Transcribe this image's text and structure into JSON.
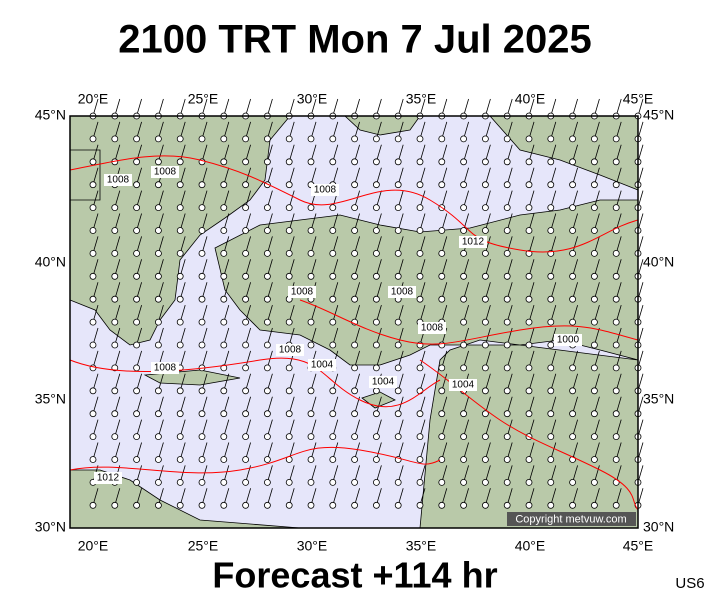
{
  "title": "2100 TRT Mon 7 Jul 2025",
  "footer": "Forecast +114 hr",
  "code": "US6",
  "copyright": "Copyright metvuw.com",
  "map": {
    "lon_labels": [
      "20°E",
      "25°E",
      "30°E",
      "35°E",
      "40°E",
      "45°E"
    ],
    "lat_labels": [
      "45°N",
      "40°N",
      "35°N",
      "30°N"
    ],
    "isobar_labels": [
      "1008",
      "1008",
      "1008",
      "1012",
      "1008",
      "1008",
      "1008",
      "1000",
      "1008",
      "1004",
      "1004",
      "1008",
      "1004",
      "1012"
    ]
  }
}
